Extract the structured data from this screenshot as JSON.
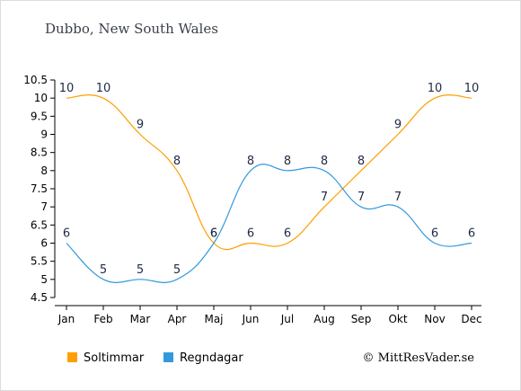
{
  "chart_data": {
    "type": "line",
    "title": "Dubbo, New South Wales",
    "categories": [
      "Jan",
      "Feb",
      "Mar",
      "Apr",
      "Maj",
      "Jun",
      "Jul",
      "Aug",
      "Sep",
      "Okt",
      "Nov",
      "Dec"
    ],
    "yticks": [
      "4.5",
      "5",
      "5.5",
      "6",
      "6.5",
      "7",
      "7.5",
      "8",
      "8.5",
      "9",
      "9.5",
      "10",
      "10.5"
    ],
    "ylim": [
      4.5,
      10.5
    ],
    "grid": false,
    "legend_position": "bottom-left",
    "series": [
      {
        "name": "Soltimmar",
        "color": "#ff9e00",
        "values": [
          10,
          10,
          9,
          8,
          6,
          6,
          6,
          7,
          8,
          9,
          10,
          10
        ]
      },
      {
        "name": "Regndagar",
        "color": "#3399dd",
        "values": [
          6,
          5,
          5,
          5,
          6,
          8,
          8,
          8,
          7,
          7,
          6,
          6
        ]
      }
    ],
    "credit": "© MittResVader.se"
  },
  "colors": {
    "background": "#fdfdff",
    "panel": "#ffffff",
    "border": "#dcdcdc"
  }
}
